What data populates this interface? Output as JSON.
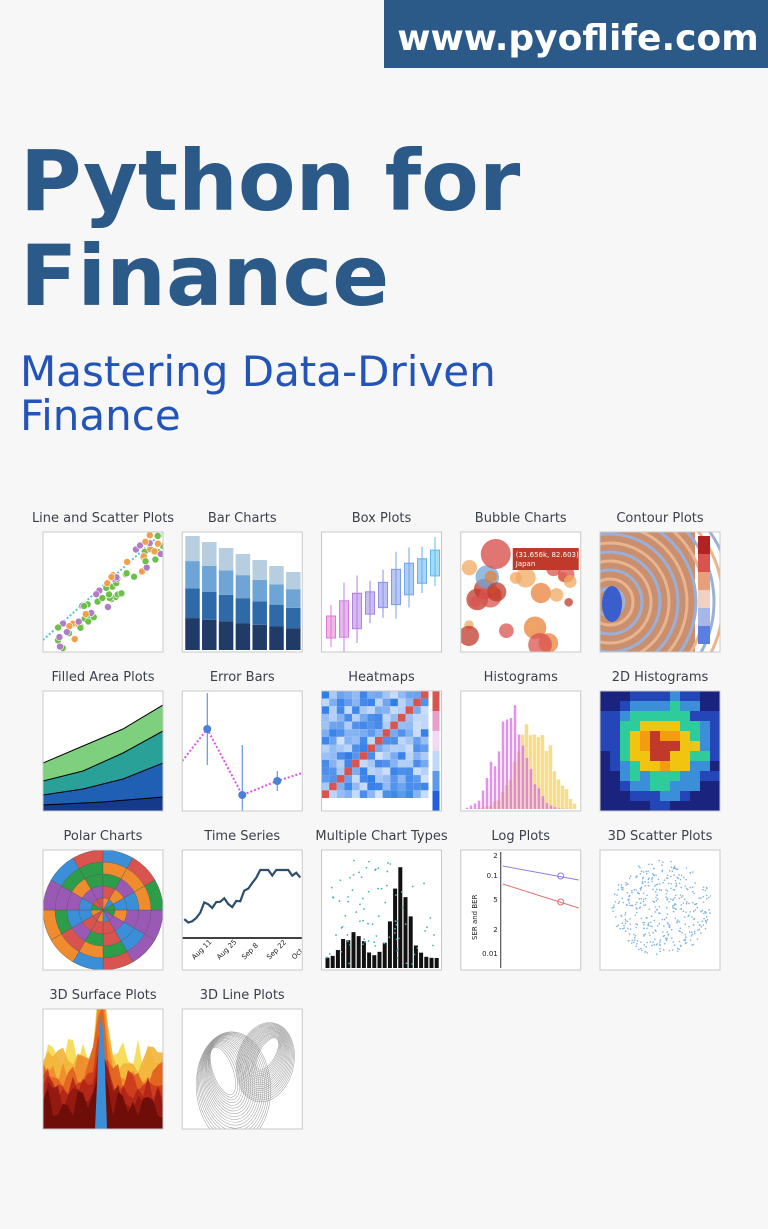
{
  "banner": {
    "url": "www.pyoflife.com"
  },
  "title": {
    "lines": [
      "Python for",
      "Finance"
    ]
  },
  "subtitle": {
    "lines": [
      "Mastering Data-Driven",
      "Finance"
    ]
  },
  "gallery": [
    {
      "label": "Line and Scatter Plots"
    },
    {
      "label": "Bar Charts"
    },
    {
      "label": "Box Plots"
    },
    {
      "label": "Bubble Charts",
      "texts": [
        "(31.656k, 82.603)",
        "Japan"
      ]
    },
    {
      "label": "Contour Plots"
    },
    {
      "label": "Filled Area Plots"
    },
    {
      "label": "Error Bars"
    },
    {
      "label": "Heatmaps"
    },
    {
      "label": "Histograms"
    },
    {
      "label": "2D Histograms"
    },
    {
      "label": "Polar Charts"
    },
    {
      "label": "Time Series",
      "texts": [
        "Aug 11",
        "Aug 25",
        "Sep 8",
        "Sep 22",
        "Oct 6"
      ]
    },
    {
      "label": "Multiple Chart Types"
    },
    {
      "label": "Log Plots",
      "texts": [
        "SER and BER",
        "2",
        "0.1",
        "5",
        "2",
        "0.01"
      ]
    },
    {
      "label": "3D Scatter Plots"
    },
    {
      "label": "3D Surface Plots"
    },
    {
      "label": "3D Line Plots"
    }
  ]
}
